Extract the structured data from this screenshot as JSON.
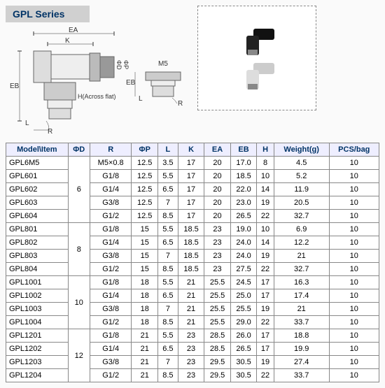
{
  "title": "GPL Series",
  "diagram_labels": {
    "EA": "EA",
    "K": "K",
    "EB": "EB",
    "L": "L",
    "R": "R",
    "PhiD": "ΦD",
    "PhiP": "ΦP",
    "H": "H(Across flat)",
    "M5": "M5"
  },
  "columns": [
    "Model\\Item",
    "ΦD",
    "R",
    "ΦP",
    "L",
    "K",
    "EA",
    "EB",
    "H",
    "Weight(g)",
    "PCS/bag"
  ],
  "phiD_groups": [
    {
      "phiD": "6",
      "rows": 5
    },
    {
      "phiD": "8",
      "rows": 4
    },
    {
      "phiD": "10",
      "rows": 4
    },
    {
      "phiD": "12",
      "rows": 4
    }
  ],
  "rows": [
    [
      "GPL6M5",
      "M5×0.8",
      "12.5",
      "3.5",
      "17",
      "20",
      "17.0",
      "8",
      "4.5",
      "10"
    ],
    [
      "GPL601",
      "G1/8",
      "12.5",
      "5.5",
      "17",
      "20",
      "18.5",
      "10",
      "5.2",
      "10"
    ],
    [
      "GPL602",
      "G1/4",
      "12.5",
      "6.5",
      "17",
      "20",
      "22.0",
      "14",
      "11.9",
      "10"
    ],
    [
      "GPL603",
      "G3/8",
      "12.5",
      "7",
      "17",
      "20",
      "23.0",
      "19",
      "20.5",
      "10"
    ],
    [
      "GPL604",
      "G1/2",
      "12.5",
      "8.5",
      "17",
      "20",
      "26.5",
      "22",
      "32.7",
      "10"
    ],
    [
      "GPL801",
      "G1/8",
      "15",
      "5.5",
      "18.5",
      "23",
      "19.0",
      "10",
      "6.9",
      "10"
    ],
    [
      "GPL802",
      "G1/4",
      "15",
      "6.5",
      "18.5",
      "23",
      "24.0",
      "14",
      "12.2",
      "10"
    ],
    [
      "GPL803",
      "G3/8",
      "15",
      "7",
      "18.5",
      "23",
      "24.0",
      "19",
      "21",
      "10"
    ],
    [
      "GPL804",
      "G1/2",
      "15",
      "8.5",
      "18.5",
      "23",
      "27.5",
      "22",
      "32.7",
      "10"
    ],
    [
      "GPL1001",
      "G1/8",
      "18",
      "5.5",
      "21",
      "25.5",
      "24.5",
      "17",
      "16.3",
      "10"
    ],
    [
      "GPL1002",
      "G1/4",
      "18",
      "6.5",
      "21",
      "25.5",
      "25.0",
      "17",
      "17.4",
      "10"
    ],
    [
      "GPL1003",
      "G3/8",
      "18",
      "7",
      "21",
      "25.5",
      "25.5",
      "19",
      "21",
      "10"
    ],
    [
      "GPL1004",
      "G1/2",
      "18",
      "8.5",
      "21",
      "25.5",
      "29.0",
      "22",
      "33.7",
      "10"
    ],
    [
      "GPL1201",
      "G1/8",
      "21",
      "5.5",
      "23",
      "28.5",
      "26.0",
      "17",
      "18.8",
      "10"
    ],
    [
      "GPL1202",
      "G1/4",
      "21",
      "6.5",
      "23",
      "28.5",
      "26.5",
      "17",
      "19.9",
      "10"
    ],
    [
      "GPL1203",
      "G3/8",
      "21",
      "7",
      "23",
      "29.5",
      "30.5",
      "19",
      "27.4",
      "10"
    ],
    [
      "GPL1204",
      "G1/2",
      "21",
      "8.5",
      "23",
      "29.5",
      "30.5",
      "22",
      "33.7",
      "10"
    ]
  ],
  "colors": {
    "header_bg": "#d0d0d0",
    "title_color": "#003366",
    "border": "#888888"
  }
}
